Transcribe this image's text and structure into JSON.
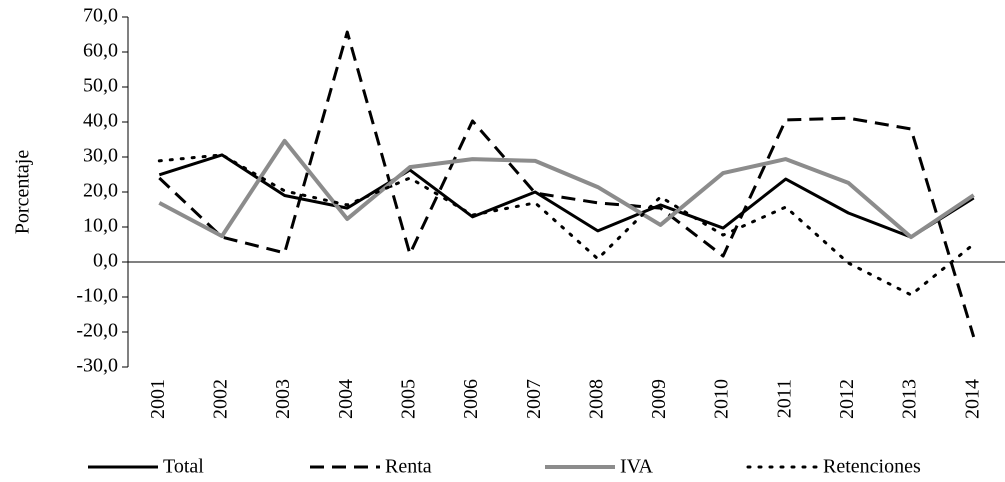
{
  "chart_data": {
    "type": "line",
    "y_label": "Porcentaje",
    "categories": [
      "2001",
      "2002",
      "2003",
      "2004",
      "2005",
      "2006",
      "2007",
      "2008",
      "2009",
      "2010",
      "2011",
      "2012",
      "2013",
      "2014"
    ],
    "series": [
      {
        "name": "Total",
        "color": "#000000",
        "dash": "solid",
        "values": [
          24.9,
          30.6,
          19.0,
          15.4,
          26.3,
          12.9,
          20.0,
          8.9,
          16.3,
          9.7,
          23.7,
          14.0,
          7.1,
          18.3
        ]
      },
      {
        "name": "Renta",
        "color": "#000000",
        "dash": "dash",
        "values": [
          24.0,
          7.1,
          2.6,
          65.7,
          2.3,
          40.3,
          19.7,
          16.9,
          15.4,
          1.7,
          40.6,
          41.1,
          38.0,
          -21.4
        ]
      },
      {
        "name": "IVA",
        "color": "#8c8c8c",
        "dash": "solid",
        "values": [
          16.9,
          7.4,
          34.6,
          12.3,
          27.1,
          29.4,
          28.9,
          21.4,
          10.6,
          25.4,
          29.4,
          22.6,
          7.1,
          19.1
        ]
      },
      {
        "name": "Retenciones",
        "color": "#000000",
        "dash": "dot",
        "values": [
          28.9,
          30.6,
          20.3,
          16.3,
          24.0,
          13.4,
          16.9,
          0.9,
          18.6,
          7.7,
          15.7,
          -0.3,
          -9.4,
          5.1
        ]
      }
    ],
    "ylim": [
      -30,
      70
    ],
    "yticks": [
      {
        "value": -30,
        "label": "-30,0"
      },
      {
        "value": -20,
        "label": "-20,0"
      },
      {
        "value": -10,
        "label": "-10,0"
      },
      {
        "value": 0,
        "label": "0,0"
      },
      {
        "value": 10,
        "label": "10,0"
      },
      {
        "value": 20,
        "label": "20,0"
      },
      {
        "value": 30,
        "label": "30,0"
      },
      {
        "value": 40,
        "label": "40,0"
      },
      {
        "value": 50,
        "label": "50,0"
      },
      {
        "value": 60,
        "label": "60,0"
      },
      {
        "value": 70,
        "label": "70,0"
      }
    ],
    "grid": false,
    "legend": "bottom"
  }
}
